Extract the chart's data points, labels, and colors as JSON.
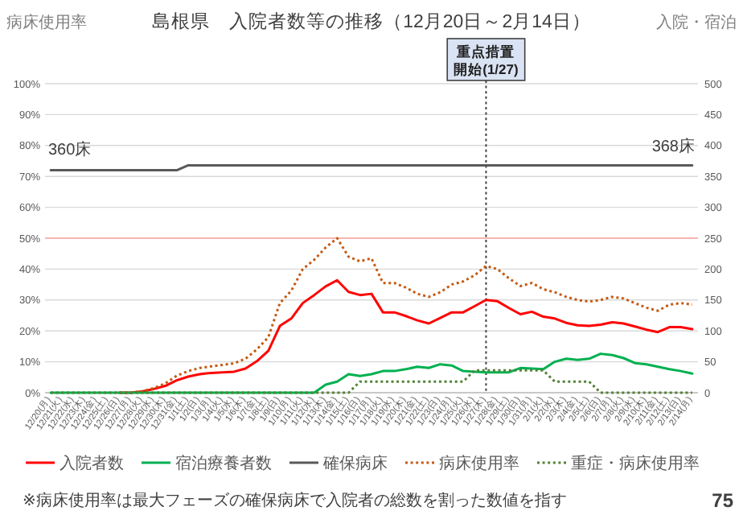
{
  "chart_data": {
    "type": "line",
    "title": "島根県　入院者数等の推移（12月20日～2月14日）",
    "ylabel": "病床使用率",
    "y2label": "入院・宿泊",
    "categories": [
      "12/20(月)",
      "12/21(火)",
      "12/22(水)",
      "12/23(木)",
      "12/24(金)",
      "12/25(土)",
      "12/26(日)",
      "12/27(月)",
      "12/28(火)",
      "12/29(水)",
      "12/30(木)",
      "12/31(金)",
      "1/1(土)",
      "1/2(日)",
      "1/3(月)",
      "1/4(火)",
      "1/5(水)",
      "1/6(木)",
      "1/7(金)",
      "1/8(土)",
      "1/9(日)",
      "1/10(月)",
      "1/11(火)",
      "1/12(水)",
      "1/13(木)",
      "1/14(金)",
      "1/15(土)",
      "1/16(日)",
      "1/17(月)",
      "1/18(火)",
      "1/19(水)",
      "1/20(木)",
      "1/21(金)",
      "1/22(土)",
      "1/23(日)",
      "1/24(月)",
      "1/25(火)",
      "1/26(水)",
      "1/27(木)",
      "1/28(金)",
      "1/29(土)",
      "1/30(日)",
      "1/31(月)",
      "2/1(火)",
      "2/2(水)",
      "2/3(木)",
      "2/4(金)",
      "2/5(土)",
      "2/6(日)",
      "2/7(月)",
      "2/8(火)",
      "2/9(水)",
      "2/10(木)",
      "2/11(金)",
      "2/12(土)",
      "2/13(日)",
      "2/14(月)"
    ],
    "series": [
      {
        "name": "入院者数",
        "type": "line",
        "axis": "y2",
        "line_style": "solid",
        "color": "#ff0000",
        "values": [
          null,
          null,
          null,
          null,
          null,
          null,
          0,
          0,
          2,
          6,
          11,
          20,
          26,
          30,
          32,
          33,
          34,
          39,
          51,
          68,
          108,
          120,
          145,
          158,
          172,
          182,
          163,
          158,
          160,
          130,
          130,
          124,
          117,
          112,
          121,
          130,
          130,
          140,
          150,
          148,
          137,
          127,
          131,
          123,
          120,
          113,
          109,
          108,
          110,
          114,
          112,
          107,
          102,
          98,
          106,
          106,
          103
        ]
      },
      {
        "name": "宿泊療養者数",
        "type": "line",
        "axis": "y2",
        "line_style": "solid",
        "color": "#00b050",
        "values": [
          0,
          0,
          0,
          0,
          0,
          0,
          0,
          0,
          0,
          0,
          0,
          0,
          0,
          0,
          0,
          0,
          0,
          0,
          0,
          0,
          0,
          0,
          0,
          0,
          13,
          18,
          30,
          27,
          30,
          35,
          35,
          38,
          42,
          40,
          46,
          44,
          35,
          34,
          33,
          33,
          33,
          40,
          39,
          38,
          50,
          55,
          53,
          55,
          63,
          61,
          56,
          48,
          46,
          42,
          38,
          35,
          31
        ]
      },
      {
        "name": "確保病床",
        "type": "line",
        "axis": "y2",
        "line_style": "solid",
        "color": "#595959",
        "values": [
          360,
          360,
          360,
          360,
          360,
          360,
          360,
          360,
          360,
          360,
          360,
          360,
          368,
          368,
          368,
          368,
          368,
          368,
          368,
          368,
          368,
          368,
          368,
          368,
          368,
          368,
          368,
          368,
          368,
          368,
          368,
          368,
          368,
          368,
          368,
          368,
          368,
          368,
          368,
          368,
          368,
          368,
          368,
          368,
          368,
          368,
          368,
          368,
          368,
          368,
          368,
          368,
          368,
          368,
          368,
          368,
          368
        ]
      },
      {
        "name": "病床使用率",
        "type": "line",
        "axis": "y",
        "line_style": "dotted",
        "color": "#c55a11",
        "values": [
          null,
          null,
          null,
          null,
          null,
          null,
          0,
          0,
          0.5,
          1.5,
          3,
          5.5,
          7,
          8,
          8.5,
          9,
          9.5,
          11,
          14,
          18,
          29,
          33,
          40,
          43,
          47,
          50,
          44,
          42.5,
          43.5,
          35.5,
          35.5,
          34,
          32,
          31,
          32.5,
          35,
          36,
          38,
          41,
          40,
          37,
          34.5,
          35.5,
          33.5,
          32.5,
          31,
          30,
          29.5,
          30,
          31,
          30.5,
          29,
          27.5,
          26.5,
          28.5,
          29,
          28.5
        ]
      },
      {
        "name": "重症・病床使用率",
        "type": "line",
        "axis": "y",
        "line_style": "dotted",
        "color": "#548235",
        "values": [
          0,
          0,
          0,
          0,
          0,
          0,
          0,
          0,
          0,
          0,
          0,
          0,
          0,
          0,
          0,
          0,
          0,
          0,
          0,
          0,
          0,
          0,
          0,
          0,
          0,
          0,
          0,
          3.6,
          3.6,
          3.6,
          3.6,
          3.6,
          3.6,
          3.6,
          3.6,
          3.6,
          3.6,
          7.2,
          7.2,
          7.2,
          7.2,
          7.2,
          7.2,
          7.2,
          3.6,
          3.6,
          3.6,
          3.6,
          0,
          0,
          0,
          0,
          0,
          0,
          0,
          0,
          0
        ]
      }
    ],
    "ylim": [
      0,
      100
    ],
    "yticks": [
      {
        "value": 0,
        "label": "0%"
      },
      {
        "value": 10,
        "label": "10%"
      },
      {
        "value": 20,
        "label": "20%"
      },
      {
        "value": 30,
        "label": "30%"
      },
      {
        "value": 40,
        "label": "40%"
      },
      {
        "value": 50,
        "label": "50%"
      },
      {
        "value": 60,
        "label": "60%"
      },
      {
        "value": 70,
        "label": "70%"
      },
      {
        "value": 80,
        "label": "80%"
      },
      {
        "value": 90,
        "label": "90%"
      },
      {
        "value": 100,
        "label": "100%"
      }
    ],
    "y2lim": [
      0,
      500
    ],
    "y2ticks": [
      0,
      50,
      100,
      150,
      200,
      250,
      300,
      350,
      400,
      450,
      500
    ],
    "grid": "y",
    "legend": "bottom",
    "ref_lines": [
      {
        "axis": "y",
        "value": 50,
        "color": "#f4b6b0",
        "line_style": "solid"
      },
      {
        "axis": "x",
        "value": "1/27(木)",
        "label": "重点措置開始(1/27)",
        "color": "#404040",
        "line_style": "dotted"
      }
    ],
    "annotations": [
      "360床",
      "368床",
      "※病床使用率は最大フェーズの確保病床で入院者の総数を割った数値を指す",
      "75"
    ]
  }
}
